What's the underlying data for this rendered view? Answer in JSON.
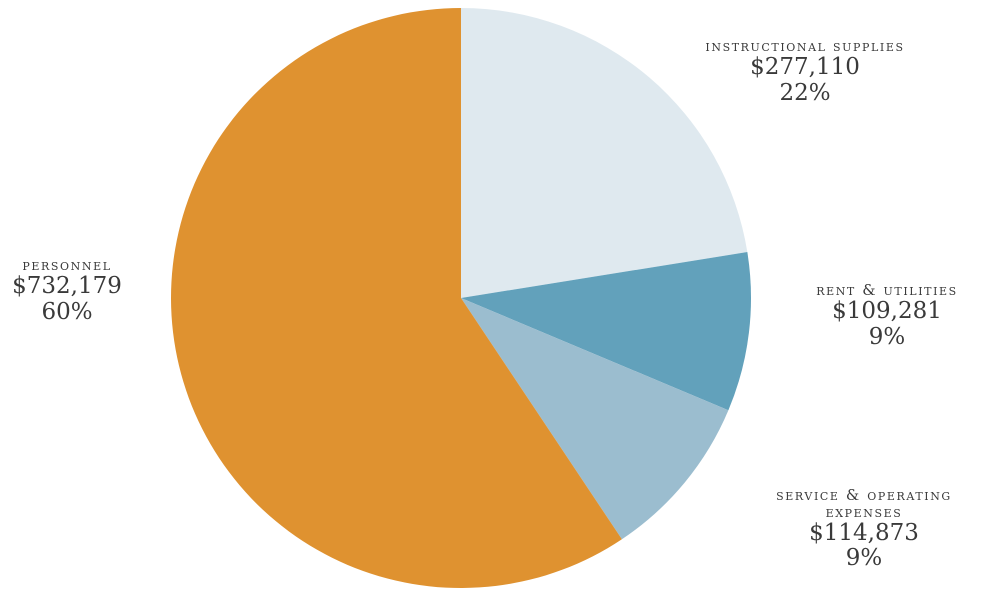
{
  "chart_data": {
    "type": "pie",
    "title": "",
    "start_angle_deg": 0,
    "direction": "clockwise",
    "slices": [
      {
        "label_lines": [
          "instructional supplies"
        ],
        "amount": "$277,110",
        "percent": "22%",
        "value": 277110,
        "color": "#dfe9ef"
      },
      {
        "label_lines": [
          "rent & utilities"
        ],
        "amount": "$109,281",
        "percent": "9%",
        "value": 109281,
        "color": "#62a1bb"
      },
      {
        "label_lines": [
          "service & operating",
          "expenses"
        ],
        "amount": "$114,873",
        "percent": "9%",
        "value": 114873,
        "color": "#9bbdcf"
      },
      {
        "label_lines": [
          "personnel"
        ],
        "amount": "$732,179",
        "percent": "60%",
        "value": 732179,
        "color": "#df9230"
      }
    ]
  }
}
